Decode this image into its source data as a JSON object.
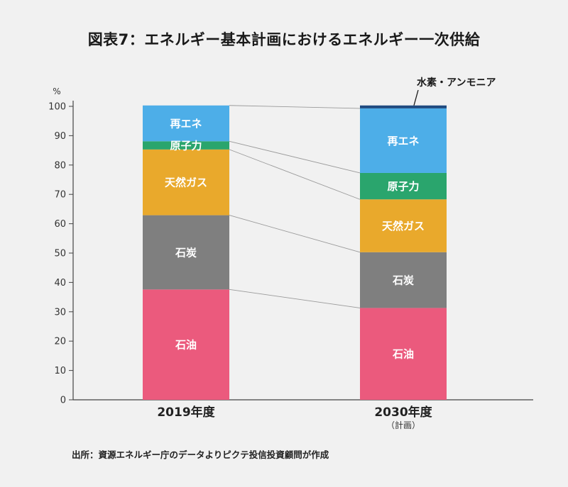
{
  "chart_data": {
    "type": "bar",
    "stacked": true,
    "title": "図表7：エネルギー基本計画におけるエネルギー一次供給",
    "ylabel": "%",
    "ylim": [
      0,
      100
    ],
    "yticks": [
      0,
      10,
      20,
      30,
      40,
      50,
      60,
      70,
      80,
      90,
      100
    ],
    "grid": false,
    "categories": [
      "2019年度",
      "2030年度"
    ],
    "category_sublabels": [
      "",
      "（計画）"
    ],
    "series": [
      {
        "name": "石油",
        "values": [
          37.6,
          31.3
        ],
        "color": "#eb5a7d"
      },
      {
        "name": "石炭",
        "values": [
          25.3,
          19.0
        ],
        "color": "#7f7f7f"
      },
      {
        "name": "天然ガス",
        "values": [
          22.4,
          18.0
        ],
        "color": "#e9a92c"
      },
      {
        "name": "原子力",
        "values": [
          2.8,
          9.0
        ],
        "color": "#2aa56d"
      },
      {
        "name": "再エネ",
        "values": [
          12.2,
          22.0
        ],
        "color": "#4daee8"
      },
      {
        "name": "水素・アンモニア",
        "values": [
          0,
          1.0
        ],
        "color": "#1f4a80",
        "label_outside": true
      }
    ],
    "annotations": [
      "水素・アンモニア"
    ]
  },
  "source_note": "出所：資源エネルギー庁のデータよりピクテ投信投資顧問が作成"
}
